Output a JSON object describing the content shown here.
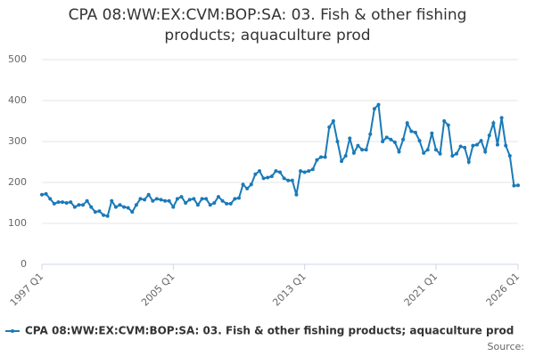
{
  "chart_data": {
    "type": "line",
    "title": "CPA 08:WW:EX:CVM:BOP:SA: 03. Fish & other fishing products; aquaculture prod",
    "source": "Source:",
    "x": [
      1997,
      1997.25,
      1997.5,
      1997.75,
      1998,
      1998.25,
      1998.5,
      1998.75,
      1999,
      1999.25,
      1999.5,
      1999.75,
      2000,
      2000.25,
      2000.5,
      2000.75,
      2001,
      2001.25,
      2001.5,
      2001.75,
      2002,
      2002.25,
      2002.5,
      2002.75,
      2003,
      2003.25,
      2003.5,
      2003.75,
      2004,
      2004.25,
      2004.5,
      2004.75,
      2005,
      2005.25,
      2005.5,
      2005.75,
      2006,
      2006.25,
      2006.5,
      2006.75,
      2007,
      2007.25,
      2007.5,
      2007.75,
      2008,
      2008.25,
      2008.5,
      2008.75,
      2009,
      2009.25,
      2009.5,
      2009.75,
      2010,
      2010.25,
      2010.5,
      2010.75,
      2011,
      2011.25,
      2011.5,
      2011.75,
      2012,
      2012.25,
      2012.5,
      2012.75,
      2013,
      2013.25,
      2013.5,
      2013.75,
      2014,
      2014.25,
      2014.5,
      2014.75,
      2015,
      2015.25,
      2015.5,
      2015.75,
      2016,
      2016.25,
      2016.5,
      2016.75,
      2017,
      2017.25,
      2017.5,
      2017.75,
      2018,
      2018.25,
      2018.5,
      2018.75,
      2019,
      2019.25,
      2019.5,
      2019.75,
      2020,
      2020.25,
      2020.5,
      2020.75,
      2021,
      2021.25,
      2021.5,
      2021.75,
      2022,
      2022.25,
      2022.5,
      2022.75,
      2023,
      2023.25,
      2023.5,
      2023.75,
      2024,
      2024.25,
      2024.5,
      2024.75,
      2025,
      2025.25,
      2025.5,
      2025.75,
      2026
    ],
    "series": [
      {
        "name": "CPA 08:WW:EX:CVM:BOP:SA: 03. Fish & other fishing products; aquaculture prod",
        "color": "#1a7ab8",
        "values": [
          170,
          172,
          160,
          148,
          152,
          152,
          150,
          152,
          140,
          145,
          145,
          155,
          140,
          128,
          130,
          120,
          118,
          155,
          140,
          145,
          140,
          138,
          128,
          145,
          160,
          158,
          170,
          155,
          160,
          158,
          155,
          155,
          140,
          160,
          165,
          150,
          158,
          160,
          145,
          160,
          160,
          145,
          150,
          165,
          155,
          148,
          148,
          160,
          162,
          195,
          185,
          195,
          220,
          228,
          210,
          212,
          215,
          228,
          225,
          210,
          205,
          205,
          170,
          228,
          225,
          228,
          232,
          255,
          262,
          262,
          335,
          350,
          300,
          252,
          265,
          308,
          272,
          290,
          280,
          280,
          318,
          380,
          390,
          300,
          310,
          305,
          298,
          275,
          305,
          345,
          325,
          322,
          302,
          272,
          280,
          320,
          280,
          270,
          350,
          340,
          265,
          270,
          288,
          285,
          250,
          290,
          292,
          302,
          275,
          315,
          345,
          292,
          358,
          290,
          265,
          192,
          193
        ]
      }
    ],
    "xlim": [
      1997,
      2026
    ],
    "xticks": [
      {
        "value": 1997,
        "label": "1997 Q1"
      },
      {
        "value": 2005,
        "label": "2005 Q1"
      },
      {
        "value": 2013,
        "label": "2013 Q1"
      },
      {
        "value": 2021,
        "label": "2021 Q1"
      },
      {
        "value": 2026,
        "label": "2026 Q1"
      }
    ],
    "ylim": [
      0,
      500
    ],
    "yticks": [
      0,
      100,
      200,
      300,
      400,
      500
    ],
    "grid": true
  }
}
